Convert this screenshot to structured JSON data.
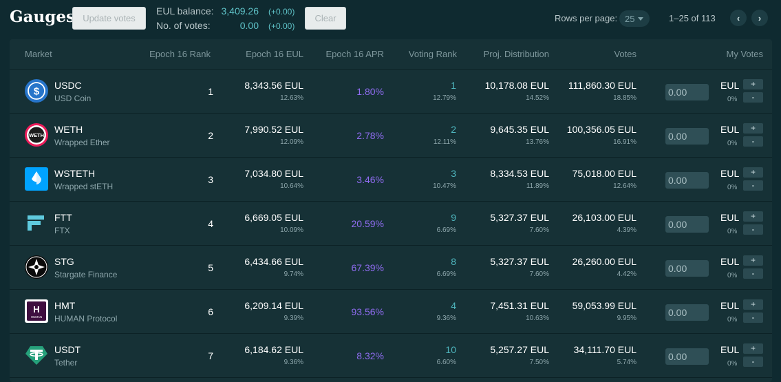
{
  "title": "Gauges",
  "buttons": {
    "update_votes": "Update votes",
    "clear": "Clear"
  },
  "balance": {
    "eul_label": "EUL balance:",
    "eul_value": "3,409.26",
    "eul_change": "(+0.00)",
    "votes_label": "No. of votes:",
    "votes_value": "0.00",
    "votes_change": "(+0.00)"
  },
  "pagination": {
    "rows_label": "Rows per page:",
    "rows_value": "25",
    "range": "1–25 of 113",
    "prev_icon": "chevron-left-icon",
    "next_icon": "chevron-right-icon"
  },
  "columns": [
    "Market",
    "Epoch 16 Rank",
    "Epoch 16 EUL",
    "Epoch 16 APR",
    "Voting Rank",
    "Proj. Distribution",
    "Votes",
    "My Votes"
  ],
  "colors": {
    "accent": "#4fb7bf",
    "apr": "#8f6cf0",
    "background": "#0f2a30",
    "panel": "#163136"
  },
  "rows": [
    {
      "symbol": "USDC",
      "name": "USD Coin",
      "icon": "usdc-icon",
      "rank": "1",
      "epoch_eul": "8,343.56 EUL",
      "epoch_eul_pct": "12.63%",
      "apr": "1.80%",
      "voting_rank": "1",
      "voting_rank_pct": "12.79%",
      "proj": "10,178.08 EUL",
      "proj_pct": "14.52%",
      "votes": "111,860.30 EUL",
      "votes_pct": "18.85%",
      "my_vote": "0.00",
      "my_unit": "EUL",
      "my_pct": "0%"
    },
    {
      "symbol": "WETH",
      "name": "Wrapped Ether",
      "icon": "weth-icon",
      "icon_text": "WETH",
      "rank": "2",
      "epoch_eul": "7,990.52 EUL",
      "epoch_eul_pct": "12.09%",
      "apr": "2.78%",
      "voting_rank": "2",
      "voting_rank_pct": "12.11%",
      "proj": "9,645.35 EUL",
      "proj_pct": "13.76%",
      "votes": "100,356.05 EUL",
      "votes_pct": "16.91%",
      "my_vote": "0.00",
      "my_unit": "EUL",
      "my_pct": "0%"
    },
    {
      "symbol": "WSTETH",
      "name": "Wrapped stETH",
      "icon": "wsteth-icon",
      "rank": "3",
      "epoch_eul": "7,034.80 EUL",
      "epoch_eul_pct": "10.64%",
      "apr": "3.46%",
      "voting_rank": "3",
      "voting_rank_pct": "10.47%",
      "proj": "8,334.53 EUL",
      "proj_pct": "11.89%",
      "votes": "75,018.00 EUL",
      "votes_pct": "12.64%",
      "my_vote": "0.00",
      "my_unit": "EUL",
      "my_pct": "0%"
    },
    {
      "symbol": "FTT",
      "name": "FTX",
      "icon": "ftx-icon",
      "rank": "4",
      "epoch_eul": "6,669.05 EUL",
      "epoch_eul_pct": "10.09%",
      "apr": "20.59%",
      "voting_rank": "9",
      "voting_rank_pct": "6.69%",
      "proj": "5,327.37 EUL",
      "proj_pct": "7.60%",
      "votes": "26,103.00 EUL",
      "votes_pct": "4.39%",
      "my_vote": "0.00",
      "my_unit": "EUL",
      "my_pct": "0%"
    },
    {
      "symbol": "STG",
      "name": "Stargate Finance",
      "icon": "stargate-icon",
      "rank": "5",
      "epoch_eul": "6,434.66 EUL",
      "epoch_eul_pct": "9.74%",
      "apr": "67.39%",
      "voting_rank": "8",
      "voting_rank_pct": "6.69%",
      "proj": "5,327.37 EUL",
      "proj_pct": "7.60%",
      "votes": "26,260.00 EUL",
      "votes_pct": "4.42%",
      "my_vote": "0.00",
      "my_unit": "EUL",
      "my_pct": "0%"
    },
    {
      "symbol": "HMT",
      "name": "HUMAN Protocol",
      "icon": "human-icon",
      "icon_text": "HUMAN",
      "rank": "6",
      "epoch_eul": "6,209.14 EUL",
      "epoch_eul_pct": "9.39%",
      "apr": "93.56%",
      "voting_rank": "4",
      "voting_rank_pct": "9.36%",
      "proj": "7,451.31 EUL",
      "proj_pct": "10.63%",
      "votes": "59,053.99 EUL",
      "votes_pct": "9.95%",
      "my_vote": "0.00",
      "my_unit": "EUL",
      "my_pct": "0%"
    },
    {
      "symbol": "USDT",
      "name": "Tether",
      "icon": "tether-icon",
      "rank": "7",
      "epoch_eul": "6,184.62 EUL",
      "epoch_eul_pct": "9.36%",
      "apr": "8.32%",
      "voting_rank": "10",
      "voting_rank_pct": "6.60%",
      "proj": "5,257.27 EUL",
      "proj_pct": "7.50%",
      "votes": "34,111.70 EUL",
      "votes_pct": "5.74%",
      "my_vote": "0.00",
      "my_unit": "EUL",
      "my_pct": "0%"
    }
  ]
}
